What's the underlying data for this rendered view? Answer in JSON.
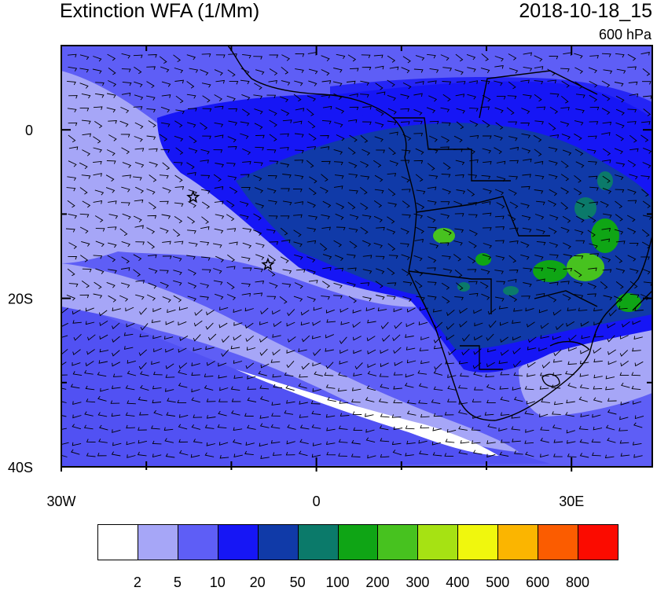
{
  "title": "Extinction WFA (1/Mm)",
  "datetime": "2018-10-18_15",
  "level": "600 hPa",
  "axes": {
    "lat_ticks": [
      {
        "lat": 0,
        "label": "0"
      },
      {
        "lat": -20,
        "label": "20S"
      },
      {
        "lat": -40,
        "label": "40S"
      }
    ],
    "lon_ticks": [
      {
        "lon": -30,
        "label": "30W"
      },
      {
        "lon": 0,
        "label": "0"
      },
      {
        "lon": 30,
        "label": "30E"
      }
    ],
    "lon_range": [
      -30,
      39.5
    ],
    "lat_range": [
      -40,
      10
    ]
  },
  "markers": [
    {
      "type": "star",
      "lon": -14.5,
      "lat": -8.0
    },
    {
      "type": "star",
      "lon": -5.7,
      "lat": -16.0
    }
  ],
  "colorbar": {
    "colors": [
      "#ffffff",
      "#a6a6f7",
      "#5e5ef6",
      "#1616f5",
      "#103aa8",
      "#0b7a6a",
      "#0fa515",
      "#47c21f",
      "#a6e213",
      "#f0f70d",
      "#fbb500",
      "#fb5c00",
      "#fb0b00"
    ],
    "labels": [
      "2",
      "5",
      "10",
      "20",
      "50",
      "100",
      "200",
      "300",
      "400",
      "500",
      "600",
      "800"
    ]
  }
}
